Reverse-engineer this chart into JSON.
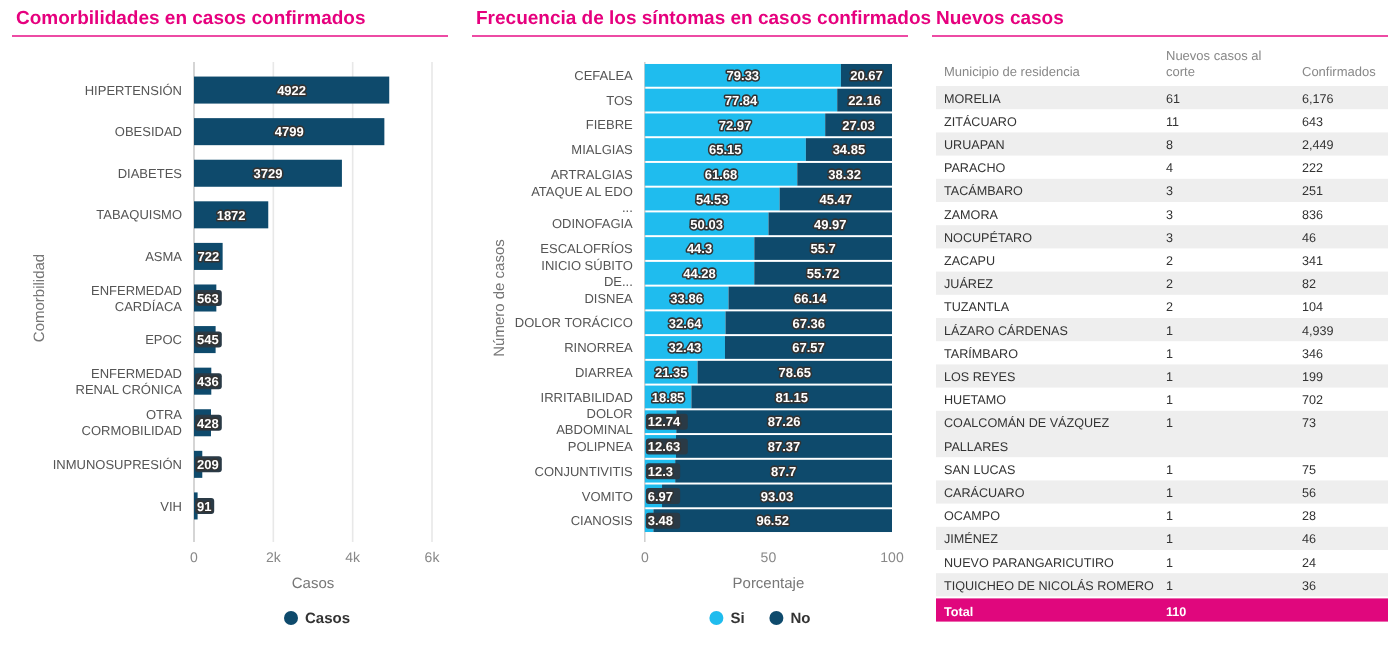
{
  "chart_data": [
    {
      "type": "bar",
      "orientation": "horizontal",
      "title": "Comorbilidades en casos confirmados",
      "xlabel": "Casos",
      "ylabel": "Comorbilidad",
      "categories": [
        "HIPERTENSIÓN",
        "OBESIDAD",
        "DIABETES",
        "TABAQUISMO",
        "ASMA",
        "ENFERMEDAD CARDÍACA",
        "EPOC",
        "ENFERMEDAD RENAL CRÓNICA",
        "OTRA CORMOBILIDAD",
        "INMUNOSUPRESIÓN",
        "VIH"
      ],
      "series": [
        {
          "name": "Casos",
          "color": "#0e4a6c",
          "values": [
            4922,
            4799,
            3729,
            1872,
            722,
            563,
            545,
            436,
            428,
            209,
            91
          ]
        }
      ],
      "xlim": [
        0,
        6000
      ],
      "xticks": [
        0,
        {
          "value": 2000,
          "label": "2k"
        },
        {
          "value": 4000,
          "label": "4k"
        },
        {
          "value": 6000,
          "label": "6k"
        }
      ],
      "grid": "x",
      "data_labels": true,
      "legend": "bottom"
    },
    {
      "type": "bar",
      "orientation": "horizontal",
      "stacked": true,
      "title": "Frecuencia de los síntomas en casos confirmados",
      "xlabel": "Porcentaje",
      "ylabel": "Número de casos",
      "categories": [
        "CEFALEA",
        "TOS",
        "FIEBRE",
        "MIALGIAS",
        "ARTRALGIAS",
        "ATAQUE AL EDO ...",
        "ODINOFAGIA",
        "ESCALOFRÍOS",
        "INICIO SÚBITO DE...",
        "DISNEA",
        "DOLOR TORÁCICO",
        "RINORREA",
        "DIARREA",
        "IRRITABILIDAD",
        "DOLOR ABDOMINAL",
        "POLIPNEA",
        "CONJUNTIVITIS",
        "VOMITO",
        "CIANOSIS"
      ],
      "series": [
        {
          "name": "Si",
          "color": "#1fbcee",
          "values": [
            79.33,
            77.84,
            72.97,
            65.15,
            61.68,
            54.53,
            50.03,
            44.3,
            44.28,
            33.86,
            32.64,
            32.43,
            21.35,
            18.85,
            12.74,
            12.63,
            12.3,
            6.97,
            3.48
          ]
        },
        {
          "name": "No",
          "color": "#0e4a6c",
          "values": [
            20.67,
            22.16,
            27.03,
            34.85,
            38.32,
            45.47,
            49.97,
            55.7,
            55.72,
            66.14,
            67.36,
            67.57,
            78.65,
            81.15,
            87.26,
            87.37,
            87.7,
            93.03,
            96.52
          ]
        }
      ],
      "xlim": [
        0,
        100
      ],
      "xticks": [
        0,
        50,
        100
      ],
      "data_labels": true,
      "legend": "bottom"
    },
    {
      "type": "other",
      "title": "Nuevos casos",
      "xlabel": "Municipio de residencia",
      "categories": [
        "MORELIA",
        "ZITÁCUARO",
        "URUAPAN",
        "PARACHO",
        "TACÁMBARO",
        "ZAMORA",
        "NOCUPÉTARO",
        "ZACAPU",
        "JUÁREZ",
        "TUZANTLA",
        "LÁZARO CÁRDENAS",
        "TARÍMBARO",
        "LOS REYES",
        "HUETAMO",
        "COALCOMÁN DE VÁZQUEZ PALLARES",
        "SAN LUCAS",
        "CARÁCUARO",
        "OCAMPO",
        "JIMÉNEZ",
        "NUEVO PARANGARICUTIRO",
        "TIQUICHEO DE NICOLÁS ROMERO"
      ],
      "series": [
        {
          "name": "Nuevos casos al corte",
          "values": [
            61,
            11,
            8,
            4,
            3,
            3,
            3,
            2,
            2,
            2,
            1,
            1,
            1,
            1,
            1,
            1,
            1,
            1,
            1,
            1,
            1
          ]
        },
        {
          "name": "Confirmados",
          "values": [
            6176,
            643,
            2449,
            222,
            251,
            836,
            46,
            341,
            82,
            104,
            4939,
            346,
            199,
            702,
            73,
            75,
            56,
            28,
            46,
            24,
            36
          ],
          "value_labels": [
            "6,176",
            "643",
            "2,449",
            "222",
            "251",
            "836",
            "46",
            "341",
            "82",
            "104",
            "4,939",
            "346",
            "199",
            "702",
            "73",
            "75",
            "56",
            "28",
            "46",
            "24",
            "36"
          ]
        }
      ],
      "data_labels": true,
      "annotations": [
        "Total"
      ],
      "totals": [
        "110"
      ]
    }
  ]
}
